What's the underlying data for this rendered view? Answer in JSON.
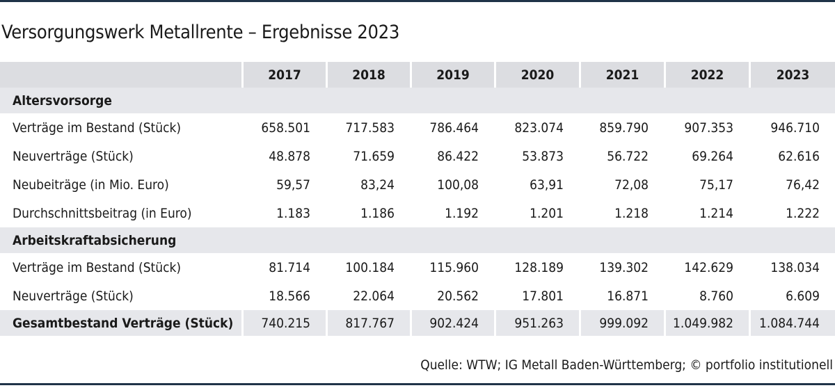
{
  "title": "Versorgungswerk Metallrente – Ergebnisse 2023",
  "years": [
    "2017",
    "2018",
    "2019",
    "2020",
    "2021",
    "2022",
    "2023"
  ],
  "sections": [
    {
      "title": "Altersvorsorge",
      "rows": [
        {
          "label": "Verträge im Bestand (Stück)",
          "values": [
            "658.501",
            "717.583",
            "786.464",
            "823.074",
            "859.790",
            "907.353",
            "946.710"
          ]
        },
        {
          "label": "Neuverträge (Stück)",
          "values": [
            "48.878",
            "71.659",
            "86.422",
            "53.873",
            "56.722",
            "69.264",
            "62.616"
          ]
        },
        {
          "label": "Neubeiträge (in Mio. Euro)",
          "values": [
            "59,57",
            "83,24",
            "100,08",
            "63,91",
            "72,08",
            "75,17",
            "76,42"
          ]
        },
        {
          "label": "Durchschnittsbeitrag (in Euro)",
          "values": [
            "1.183",
            "1.186",
            "1.192",
            "1.201",
            "1.218",
            "1.214",
            "1.222"
          ]
        }
      ]
    },
    {
      "title": "Arbeitskraftabsicherung",
      "rows": [
        {
          "label": "Verträge im Bestand (Stück)",
          "values": [
            "81.714",
            "100.184",
            "115.960",
            "128.189",
            "139.302",
            "142.629",
            "138.034"
          ]
        },
        {
          "label": "Neuverträge (Stück)",
          "values": [
            "18.566",
            "22.064",
            "20.562",
            "17.801",
            "16.871",
            "8.760",
            "6.609"
          ]
        }
      ]
    }
  ],
  "total": {
    "label": "Gesamtbestand Verträge (Stück)",
    "values": [
      "740.215",
      "817.767",
      "902.424",
      "951.263",
      "999.092",
      "1.049.982",
      "1.084.744"
    ]
  },
  "source": "Quelle: WTW; IG Metall Baden-Württemberg; © portfolio institutionell",
  "colors": {
    "rule": "#1f3348",
    "header_bg": "#dcdde1",
    "band_bg": "#e6e7eb"
  }
}
